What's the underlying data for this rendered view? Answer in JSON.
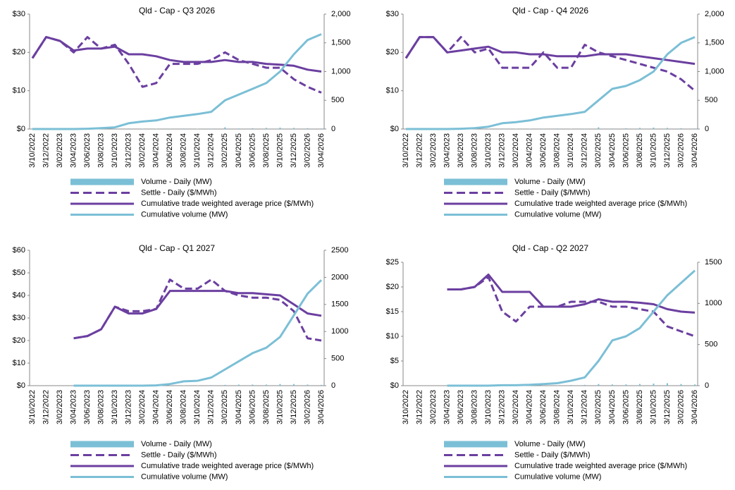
{
  "chart_data": [
    {
      "type": "combo",
      "title": "Qld - Cap - Q3 2026",
      "categories": [
        "3/10/2022",
        "3/12/2022",
        "3/02/2023",
        "3/04/2023",
        "3/06/2023",
        "3/08/2023",
        "3/10/2023",
        "3/12/2023",
        "3/02/2024",
        "3/04/2024",
        "3/06/2024",
        "3/08/2024",
        "3/10/2024",
        "3/12/2024",
        "3/02/2025",
        "3/04/2025",
        "3/06/2025",
        "3/08/2025",
        "3/10/2025",
        "3/12/2025",
        "3/02/2026",
        "3/04/2026"
      ],
      "ylim": [
        0,
        30
      ],
      "yticks": [
        {
          "value": 0,
          "label": "$0"
        },
        {
          "value": 10,
          "label": "$10"
        },
        {
          "value": 20,
          "label": "$20"
        },
        {
          "value": 30,
          "label": "$30"
        }
      ],
      "y2lim": [
        0,
        2000
      ],
      "y2ticks": [
        0,
        500,
        {
          "value": 1000,
          "label": "1,000"
        },
        {
          "value": 1500,
          "label": "1,500"
        },
        {
          "value": 2000,
          "label": "2,000"
        }
      ],
      "series": [
        {
          "name": "Volume - Daily (MW)",
          "kind": "bar",
          "axis": "y2",
          "color": "#7bbfd6",
          "values": [
            0,
            0,
            0,
            0,
            2,
            3,
            5,
            10,
            5,
            5,
            8,
            10,
            5,
            8,
            30,
            10,
            15,
            20,
            25,
            20,
            15,
            10
          ]
        },
        {
          "name": "Settle - Daily ($/MWh)",
          "kind": "line",
          "dash": true,
          "color": "#6b3fa0",
          "values": [
            18.5,
            24,
            23,
            20,
            24,
            21,
            22,
            17,
            11,
            12,
            17,
            17,
            17,
            18,
            20,
            18,
            17,
            16,
            16,
            13,
            11,
            9.5
          ]
        },
        {
          "name": "Cumulative trade weighted average price ($/MWh)",
          "kind": "line",
          "color": "#6b3fa0",
          "values": [
            18.5,
            24,
            23,
            20.5,
            21,
            21,
            21.5,
            19.5,
            19.5,
            19,
            18,
            17.5,
            17.5,
            17.5,
            18,
            17.5,
            17.5,
            17,
            16.8,
            16.5,
            15.5,
            15
          ]
        },
        {
          "name": "Cumulative volume (MW)",
          "kind": "line",
          "axis": "y2",
          "color": "#7bbfd6",
          "values": [
            0,
            0,
            0,
            0,
            5,
            15,
            30,
            100,
            130,
            150,
            200,
            230,
            260,
            300,
            500,
            600,
            700,
            800,
            1000,
            1300,
            1550,
            1650
          ]
        }
      ]
    },
    {
      "type": "combo",
      "title": "Qld - Cap - Q4 2026",
      "categories": [
        "3/10/2022",
        "3/12/2022",
        "3/02/2023",
        "3/04/2023",
        "3/06/2023",
        "3/08/2023",
        "3/10/2023",
        "3/12/2023",
        "3/02/2024",
        "3/04/2024",
        "3/06/2024",
        "3/08/2024",
        "3/10/2024",
        "3/12/2024",
        "3/02/2025",
        "3/04/2025",
        "3/06/2025",
        "3/08/2025",
        "3/10/2025",
        "3/12/2025",
        "3/02/2026",
        "3/04/2026"
      ],
      "ylim": [
        0,
        30
      ],
      "yticks": [
        {
          "value": 0,
          "label": "$0"
        },
        {
          "value": 10,
          "label": "$10"
        },
        {
          "value": 20,
          "label": "$20"
        },
        {
          "value": 30,
          "label": "$30"
        }
      ],
      "y2lim": [
        0,
        2000
      ],
      "y2ticks": [
        0,
        500,
        {
          "value": 1000,
          "label": "1,000"
        },
        {
          "value": 1500,
          "label": "1,500"
        },
        {
          "value": 2000,
          "label": "2,000"
        }
      ],
      "series": [
        {
          "name": "Volume - Daily (MW)",
          "kind": "bar",
          "axis": "y2",
          "color": "#7bbfd6",
          "values": [
            0,
            0,
            0,
            0,
            2,
            3,
            5,
            10,
            5,
            5,
            8,
            10,
            5,
            8,
            30,
            10,
            15,
            20,
            25,
            20,
            15,
            10
          ]
        },
        {
          "name": "Settle - Daily ($/MWh)",
          "kind": "line",
          "dash": true,
          "color": "#6b3fa0",
          "values": [
            18.5,
            24,
            24,
            20,
            24,
            20,
            21,
            16,
            16,
            16,
            20,
            16,
            16,
            22,
            20,
            19,
            18,
            17,
            16,
            15,
            13,
            10
          ]
        },
        {
          "name": "Cumulative trade weighted average price ($/MWh)",
          "kind": "line",
          "color": "#6b3fa0",
          "values": [
            18.5,
            24,
            24,
            20,
            20.5,
            21,
            21.5,
            20,
            20,
            19.5,
            19.5,
            19,
            19,
            19,
            19.5,
            19.5,
            19.5,
            19,
            18.5,
            18,
            17.5,
            17
          ]
        },
        {
          "name": "Cumulative volume (MW)",
          "kind": "line",
          "axis": "y2",
          "color": "#7bbfd6",
          "values": [
            0,
            0,
            0,
            0,
            5,
            15,
            40,
            100,
            120,
            150,
            200,
            230,
            260,
            300,
            500,
            700,
            750,
            850,
            1000,
            1300,
            1500,
            1600
          ]
        }
      ]
    },
    {
      "type": "combo",
      "title": "Qld - Cap - Q1 2027",
      "categories": [
        "3/10/2022",
        "3/12/2022",
        "3/02/2023",
        "3/04/2023",
        "3/06/2023",
        "3/08/2023",
        "3/10/2023",
        "3/12/2023",
        "3/02/2024",
        "3/04/2024",
        "3/06/2024",
        "3/08/2024",
        "3/10/2024",
        "3/12/2024",
        "3/02/2025",
        "3/04/2025",
        "3/06/2025",
        "3/08/2025",
        "3/10/2025",
        "3/12/2025",
        "3/02/2026",
        "3/04/2026"
      ],
      "ylim": [
        0,
        60
      ],
      "yticks": [
        {
          "value": 0,
          "label": "$0"
        },
        {
          "value": 10,
          "label": "$10"
        },
        {
          "value": 20,
          "label": "$20"
        },
        {
          "value": 30,
          "label": "$30"
        },
        {
          "value": 40,
          "label": "$40"
        },
        {
          "value": 50,
          "label": "$50"
        },
        {
          "value": 60,
          "label": "$60"
        }
      ],
      "y2lim": [
        0,
        2500
      ],
      "y2ticks": [
        0,
        500,
        1000,
        1500,
        2000,
        2500
      ],
      "series": [
        {
          "name": "Volume - Daily (MW)",
          "kind": "bar",
          "axis": "y2",
          "color": "#7bbfd6",
          "values": [
            null,
            null,
            null,
            0,
            0,
            0,
            0,
            0,
            0,
            2,
            5,
            5,
            5,
            10,
            15,
            20,
            20,
            20,
            30,
            30,
            20,
            15
          ]
        },
        {
          "name": "Settle - Daily ($/MWh)",
          "kind": "line",
          "dash": true,
          "color": "#6b3fa0",
          "values": [
            null,
            null,
            null,
            21,
            22,
            25,
            35,
            33,
            33,
            34,
            47,
            43,
            43,
            47,
            42,
            40,
            39,
            39,
            38,
            33,
            21,
            20
          ]
        },
        {
          "name": "Cumulative trade weighted average price ($/MWh)",
          "kind": "line",
          "color": "#6b3fa0",
          "values": [
            null,
            null,
            null,
            21,
            22,
            25,
            35,
            32,
            32,
            34,
            42,
            42,
            42,
            42,
            42,
            41,
            41,
            40.5,
            40,
            36,
            32,
            31
          ]
        },
        {
          "name": "Cumulative volume (MW)",
          "kind": "line",
          "axis": "y2",
          "color": "#7bbfd6",
          "values": [
            null,
            null,
            null,
            0,
            0,
            0,
            0,
            0,
            0,
            5,
            30,
            80,
            90,
            150,
            300,
            450,
            600,
            700,
            900,
            1300,
            1700,
            1950
          ]
        }
      ]
    },
    {
      "type": "combo",
      "title": "Qld - Cap - Q2 2027",
      "categories": [
        "3/10/2022",
        "3/12/2022",
        "3/02/2023",
        "3/04/2023",
        "3/06/2023",
        "3/08/2023",
        "3/10/2023",
        "3/12/2023",
        "3/02/2024",
        "3/04/2024",
        "3/06/2024",
        "3/08/2024",
        "3/10/2024",
        "3/12/2024",
        "3/02/2025",
        "3/04/2025",
        "3/06/2025",
        "3/08/2025",
        "3/10/2025",
        "3/12/2025",
        "3/02/2026",
        "3/04/2026"
      ],
      "ylim": [
        0,
        25
      ],
      "yticks": [
        {
          "value": 0,
          "label": "$0"
        },
        {
          "value": 5,
          "label": "$5"
        },
        {
          "value": 10,
          "label": "$10"
        },
        {
          "value": 15,
          "label": "$15"
        },
        {
          "value": 20,
          "label": "$20"
        },
        {
          "value": 25,
          "label": "$25"
        }
      ],
      "y2lim": [
        0,
        1500
      ],
      "y2ticks": [
        0,
        500,
        1000,
        1500
      ],
      "series": [
        {
          "name": "Volume - Daily (MW)",
          "kind": "bar",
          "axis": "y2",
          "color": "#7bbfd6",
          "values": [
            null,
            null,
            null,
            0,
            0,
            0,
            0,
            2,
            2,
            3,
            5,
            5,
            8,
            10,
            20,
            15,
            15,
            20,
            25,
            30,
            20,
            15
          ]
        },
        {
          "name": "Settle - Daily ($/MWh)",
          "kind": "line",
          "dash": true,
          "color": "#6b3fa0",
          "values": [
            null,
            null,
            null,
            19.5,
            19.5,
            20,
            22,
            15,
            13,
            16,
            16,
            16,
            17,
            17,
            17,
            16,
            16,
            15.5,
            15,
            12,
            11,
            10
          ]
        },
        {
          "name": "Cumulative trade weighted average price ($/MWh)",
          "kind": "line",
          "color": "#6b3fa0",
          "values": [
            null,
            null,
            null,
            19.5,
            19.5,
            20,
            22.5,
            19,
            19,
            19,
            16,
            16,
            16,
            16.5,
            17.5,
            17,
            17,
            16.8,
            16.5,
            15.5,
            15,
            14.8
          ]
        },
        {
          "name": "Cumulative volume (MW)",
          "kind": "line",
          "axis": "y2",
          "color": "#7bbfd6",
          "values": [
            null,
            null,
            null,
            0,
            0,
            0,
            0,
            5,
            5,
            10,
            20,
            30,
            60,
            100,
            300,
            550,
            600,
            700,
            900,
            1100,
            1250,
            1400
          ]
        }
      ]
    }
  ]
}
